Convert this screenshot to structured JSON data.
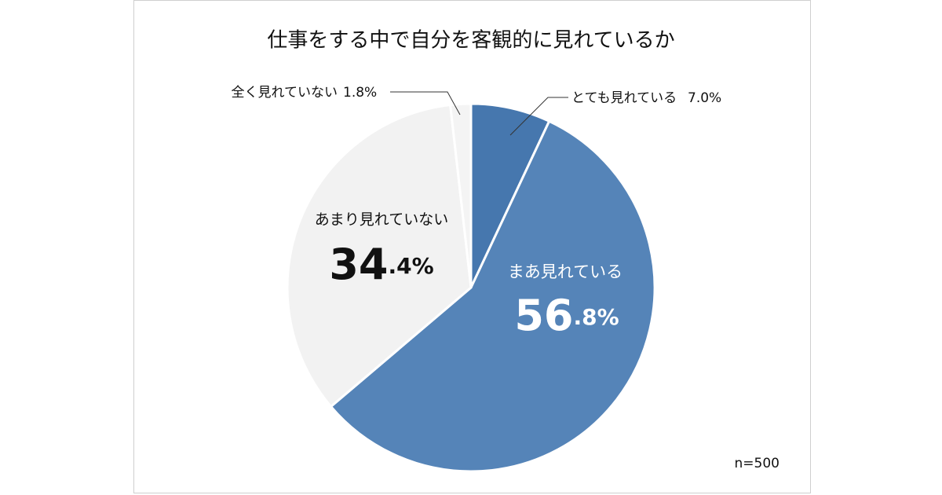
{
  "chart_data": {
    "type": "pie",
    "title": "仕事をする中で自分を客観的に見れているか",
    "categories": [
      "とても見れている",
      "まあ見れている",
      "あまり見れていない",
      "全く見れていない"
    ],
    "values": [
      7.0,
      56.8,
      34.4,
      1.8
    ],
    "value_labels": [
      "7.0%",
      "56.8%",
      "34.4%",
      "1.8%"
    ],
    "colors": [
      "#4677ae",
      "#5584b8",
      "#f2f2f2",
      "#f4f4f4"
    ],
    "note": "n=500"
  }
}
